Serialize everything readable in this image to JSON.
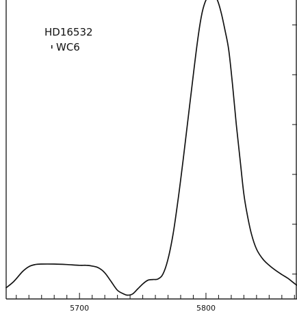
{
  "chart_data": {
    "type": "line",
    "title": "",
    "xlabel": "",
    "ylabel": "",
    "annotations": [
      "HD16532",
      "WC6"
    ],
    "x_tick_labels": [
      "5700",
      "5800"
    ],
    "xlim": [
      5642,
      5872
    ],
    "ylim": [
      0,
      12
    ],
    "grid": false,
    "legend": "none",
    "y_ticks_unlabeled": [
      1,
      3,
      5,
      7,
      9,
      11
    ],
    "series": [
      {
        "x": [
          5642,
          5648,
          5655,
          5660,
          5665,
          5670,
          5680,
          5690,
          5700,
          5705,
          5710,
          5715,
          5720,
          5725,
          5730,
          5735,
          5738,
          5742,
          5746,
          5750,
          5754,
          5758,
          5762,
          5766,
          5770,
          5774,
          5778,
          5782,
          5786,
          5790,
          5794,
          5797,
          5800,
          5803,
          5806,
          5809,
          5812,
          5815,
          5818,
          5821,
          5824,
          5827,
          5830,
          5833,
          5836,
          5840,
          5845,
          5850,
          5855,
          5860,
          5865,
          5870,
          5872
        ],
        "y": [
          0.45,
          0.7,
          1.1,
          1.3,
          1.38,
          1.4,
          1.4,
          1.38,
          1.35,
          1.35,
          1.32,
          1.25,
          1.05,
          0.7,
          0.35,
          0.2,
          0.15,
          0.2,
          0.4,
          0.6,
          0.75,
          0.78,
          0.8,
          1.0,
          1.6,
          2.6,
          4.0,
          5.6,
          7.3,
          9.0,
          10.6,
          11.5,
          12.0,
          12.2,
          12.2,
          12.0,
          11.5,
          10.8,
          10.0,
          8.6,
          7.0,
          5.6,
          4.2,
          3.3,
          2.6,
          2.0,
          1.6,
          1.35,
          1.15,
          0.98,
          0.82,
          0.62,
          0.55
        ]
      }
    ]
  }
}
